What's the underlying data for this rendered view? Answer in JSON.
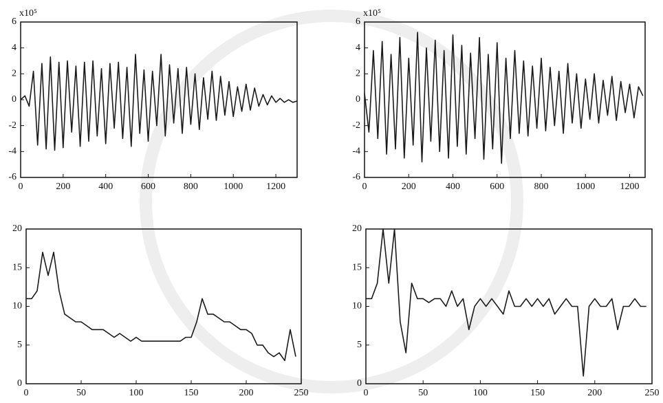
{
  "chart_data": [
    {
      "type": "line",
      "annotation": "x10⁵",
      "x": [
        0,
        20,
        40,
        60,
        80,
        100,
        120,
        140,
        160,
        180,
        200,
        220,
        240,
        260,
        280,
        300,
        320,
        340,
        360,
        380,
        400,
        420,
        440,
        460,
        480,
        500,
        520,
        540,
        560,
        580,
        600,
        620,
        640,
        660,
        680,
        700,
        720,
        740,
        760,
        780,
        800,
        820,
        840,
        860,
        880,
        900,
        920,
        940,
        960,
        980,
        1000,
        1020,
        1040,
        1060,
        1080,
        1100,
        1120,
        1140,
        1160,
        1180,
        1200,
        1220,
        1240,
        1260,
        1280,
        1300
      ],
      "series": [
        {
          "color": "#1a1a1a",
          "values": [
            0,
            0.3,
            -0.5,
            2.2,
            -3.5,
            2.8,
            -3.8,
            3.3,
            -3.9,
            2.9,
            -3.7,
            3.0,
            -2.5,
            2.6,
            -3.6,
            2.9,
            -3.2,
            3.0,
            -2.8,
            2.4,
            -3.4,
            2.8,
            -2.2,
            2.9,
            -3.0,
            2.5,
            -3.6,
            3.5,
            -2.6,
            2.3,
            -3.2,
            2.2,
            -2.0,
            3.5,
            -2.8,
            2.7,
            -1.8,
            2.4,
            -2.6,
            2.5,
            -1.9,
            2.0,
            -2.3,
            1.7,
            -1.5,
            2.2,
            -1.6,
            1.8,
            -1.2,
            1.4,
            -1.3,
            1.0,
            -0.9,
            1.2,
            -0.8,
            0.9,
            -0.5,
            0.4,
            -0.4,
            0.3,
            -0.2,
            0.1,
            -0.2,
            0,
            -0.2,
            -0.1
          ]
        }
      ],
      "xlim": [
        0,
        1300
      ],
      "xticks": [
        0,
        200,
        400,
        600,
        800,
        1000,
        1200
      ],
      "ylim": [
        -6,
        6
      ],
      "yticks": [
        -6,
        -4,
        -2,
        0,
        2,
        4,
        6
      ]
    },
    {
      "type": "line",
      "annotation": "x10⁵",
      "x": [
        0,
        20,
        40,
        60,
        80,
        100,
        120,
        140,
        160,
        180,
        200,
        220,
        240,
        260,
        280,
        300,
        320,
        340,
        360,
        380,
        400,
        420,
        440,
        460,
        480,
        500,
        520,
        540,
        560,
        580,
        600,
        620,
        640,
        660,
        680,
        700,
        720,
        740,
        760,
        780,
        800,
        820,
        840,
        860,
        880,
        900,
        920,
        940,
        960,
        980,
        1000,
        1020,
        1040,
        1060,
        1080,
        1100,
        1120,
        1140,
        1160,
        1180,
        1200,
        1220,
        1240,
        1260
      ],
      "series": [
        {
          "color": "#1a1a1a",
          "values": [
            0.5,
            -2.5,
            3.8,
            -3.0,
            4.5,
            -4.2,
            3.5,
            -3.8,
            4.8,
            -4.5,
            3.2,
            -3.5,
            5.2,
            -4.8,
            4.0,
            -3.2,
            4.6,
            -4.0,
            3.8,
            -4.5,
            5.0,
            -3.6,
            4.2,
            -4.2,
            3.6,
            -3.0,
            4.8,
            -4.6,
            3.5,
            -3.8,
            4.4,
            -4.9,
            3.2,
            -3.0,
            3.8,
            -2.6,
            3.0,
            -2.8,
            2.6,
            -2.2,
            3.2,
            -2.4,
            2.5,
            -2.0,
            2.2,
            -2.6,
            2.8,
            -1.8,
            2.0,
            -2.2,
            1.6,
            -1.5,
            2.0,
            -1.8,
            1.5,
            -1.2,
            1.8,
            -1.6,
            1.4,
            -1.0,
            1.2,
            -1.4,
            1.0,
            0.3
          ]
        }
      ],
      "xlim": [
        0,
        1270
      ],
      "xticks": [
        0,
        200,
        400,
        600,
        800,
        1000,
        1200
      ],
      "ylim": [
        -6,
        6
      ],
      "yticks": [
        -6,
        -4,
        -2,
        0,
        2,
        4,
        6
      ]
    },
    {
      "type": "line",
      "x": [
        0,
        5,
        10,
        15,
        20,
        25,
        30,
        35,
        40,
        45,
        50,
        55,
        60,
        65,
        70,
        75,
        80,
        85,
        90,
        95,
        100,
        105,
        110,
        115,
        120,
        125,
        130,
        135,
        140,
        145,
        150,
        155,
        160,
        165,
        170,
        175,
        180,
        185,
        190,
        195,
        200,
        205,
        210,
        215,
        220,
        225,
        230,
        235,
        240,
        245
      ],
      "series": [
        {
          "color": "#1a1a1a",
          "values": [
            11,
            11,
            12,
            17,
            14,
            17,
            12,
            9,
            8.5,
            8,
            8,
            7.5,
            7,
            7,
            7,
            6.5,
            6,
            6.5,
            6,
            5.5,
            6,
            5.5,
            5.5,
            5.5,
            5.5,
            5.5,
            5.5,
            5.5,
            5.5,
            6,
            6,
            8,
            11,
            9,
            9,
            8.5,
            8,
            8,
            7.5,
            7,
            7,
            6.5,
            5,
            5,
            4,
            3.5,
            4,
            3,
            7,
            3.5
          ]
        }
      ],
      "xlim": [
        0,
        250
      ],
      "xticks": [
        0,
        50,
        100,
        150,
        200,
        250
      ],
      "ylim": [
        0,
        20
      ],
      "yticks": [
        0,
        5,
        10,
        15,
        20
      ]
    },
    {
      "type": "line",
      "x": [
        0,
        5,
        10,
        15,
        20,
        25,
        30,
        35,
        40,
        45,
        50,
        55,
        60,
        65,
        70,
        75,
        80,
        85,
        90,
        95,
        100,
        105,
        110,
        115,
        120,
        125,
        130,
        135,
        140,
        145,
        150,
        155,
        160,
        165,
        170,
        175,
        180,
        185,
        190,
        195,
        200,
        205,
        210,
        215,
        220,
        225,
        230,
        235,
        240,
        245
      ],
      "series": [
        {
          "color": "#1a1a1a",
          "values": [
            11,
            11,
            13,
            20,
            13,
            20,
            8,
            4,
            13,
            11,
            11,
            10.5,
            11,
            11,
            10,
            12,
            10,
            11,
            7,
            10,
            11,
            10,
            11,
            10,
            9,
            12,
            10,
            10,
            11,
            10,
            11,
            10,
            11,
            9,
            10,
            11,
            10,
            10,
            1,
            10,
            11,
            10,
            10,
            11,
            7,
            10,
            10,
            11,
            10,
            10
          ]
        }
      ],
      "xlim": [
        0,
        250
      ],
      "xticks": [
        0,
        50,
        100,
        150,
        200,
        250
      ],
      "ylim": [
        0,
        20
      ],
      "yticks": [
        0,
        5,
        10,
        15,
        20
      ]
    }
  ]
}
